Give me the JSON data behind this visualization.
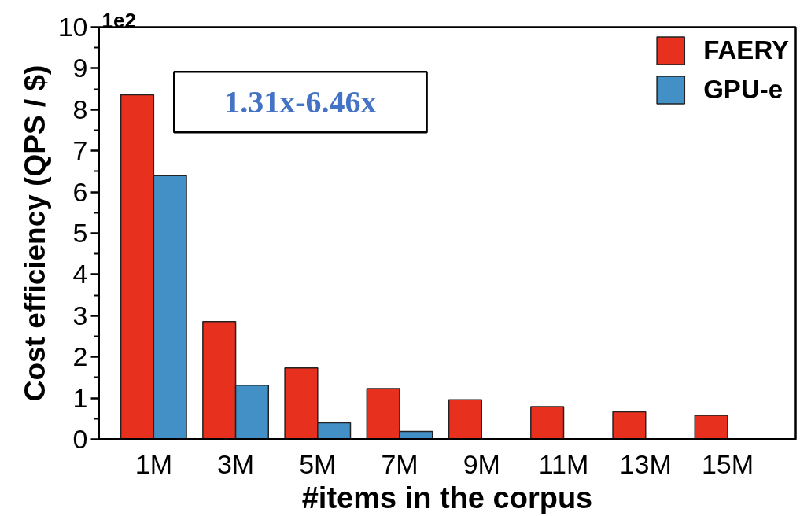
{
  "chart_data": {
    "type": "bar",
    "xlabel": "#items in the corpus",
    "ylabel": "Cost efficiency (QPS / $)",
    "categories": [
      "1M",
      "3M",
      "5M",
      "7M",
      "9M",
      "11M",
      "13M",
      "15M"
    ],
    "series": [
      {
        "name": "FAERY",
        "color": "#e8301f",
        "values": [
          8.36,
          2.86,
          1.73,
          1.23,
          0.96,
          0.79,
          0.67,
          0.58
        ]
      },
      {
        "name": "GPU-e",
        "color": "#4390c6",
        "values": [
          6.4,
          1.31,
          0.4,
          0.19,
          null,
          null,
          null,
          null
        ]
      }
    ],
    "ylim": [
      0,
      10
    ],
    "yticks": [
      0,
      {
        "value": 0.5,
        "label": null
      },
      1,
      {
        "value": 1.5,
        "label": null
      },
      2,
      {
        "value": 2.5,
        "label": null
      },
      3,
      {
        "value": 3.5,
        "label": null
      },
      4,
      {
        "value": 4.5,
        "label": null
      },
      5,
      {
        "value": 5.5,
        "label": null
      },
      6,
      {
        "value": 6.5,
        "label": null
      },
      7,
      {
        "value": 7.5,
        "label": null
      },
      8,
      {
        "value": 8.5,
        "label": null
      },
      9,
      {
        "value": 9.5,
        "label": null
      },
      10
    ],
    "legend": "top right",
    "grid": false,
    "annotations": [
      "1e2",
      "1.31x-6.46x"
    ]
  }
}
